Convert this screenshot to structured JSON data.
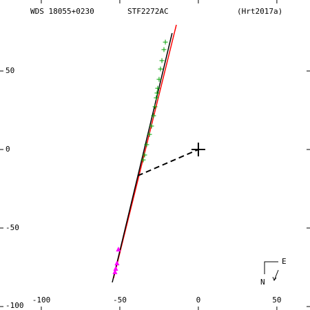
{
  "chart_data": {
    "type": "scatter",
    "title": "STF2272AC",
    "subtitle": "WDS 18055+0230",
    "reference": "(Hrt2017a)",
    "compass": {
      "east": "E",
      "north": "N"
    },
    "xlim": [
      -126.3,
      71.1
    ],
    "ylim": [
      -102.2,
      95.2
    ],
    "xticks": [
      -100,
      -50,
      0,
      50
    ],
    "yticks": [
      -100,
      -50,
      0,
      50
    ],
    "series": [
      {
        "color": "#00a000",
        "marker": "plus",
        "x": [
          -21.0,
          -21.9,
          -23.2,
          -24.1,
          -25.0,
          -25.9,
          -26.3,
          -26.8,
          -27.6,
          -28.5,
          -29.8,
          -31.1,
          -32.9,
          -34.2,
          -35.1
        ],
        "y": [
          68.4,
          63.6,
          56.6,
          51.3,
          44.7,
          39.0,
          36.0,
          32.9,
          27.2,
          21.5,
          14.9,
          9.6,
          3.1,
          -3.5,
          -6.6
        ]
      },
      {
        "color": "#ff00ff",
        "marker": "triangle",
        "x": [
          -50.9,
          -51.8,
          -52.6,
          -53.1
        ],
        "y": [
          -63.6,
          -72.4,
          -75.9,
          -78.0
        ]
      }
    ],
    "lines": [
      {
        "color": "#ff0000",
        "dash": false,
        "x": [
          -54.0,
          -14.0
        ],
        "y": [
          -82.0,
          79.4
        ]
      },
      {
        "color": "#000000",
        "dash": false,
        "x": [
          -54.8,
          -16.7
        ],
        "y": [
          -84.6,
          74.1
        ]
      },
      {
        "color": "#000000",
        "dash": true,
        "x": [
          -38.6,
          0
        ],
        "y": [
          -16.7,
          0
        ]
      }
    ],
    "primary": {
      "x": 0,
      "y": 0
    }
  }
}
